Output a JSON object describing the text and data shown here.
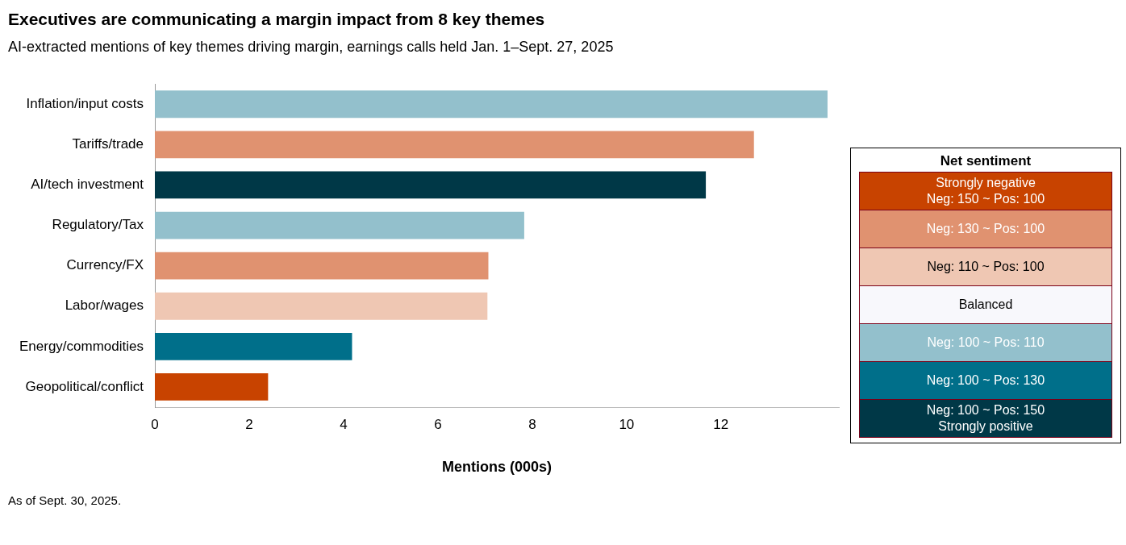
{
  "chart_data": {
    "type": "bar",
    "orientation": "horizontal",
    "title": "Executives are communicating a margin impact from 8 key themes",
    "subtitle": "AI-extracted mentions of key themes driving margin, earnings calls held Jan. 1–Sept. 27, 2025",
    "xlabel": "Mentions (000s)",
    "legend_title": "Net sentiment",
    "legend": "right",
    "categories": [
      "Inflation/input costs",
      "Tariffs/trade",
      "AI/tech investment",
      "Regulatory/Tax",
      "Currency/FX",
      "Labor/wages",
      "Energy/commodities",
      "Geopolitical/conflict"
    ],
    "xlim": [
      0,
      14.5
    ],
    "xticks": [
      0,
      2,
      4,
      6,
      8,
      10,
      12
    ],
    "series": [
      {
        "name": "Strongly negative\nNeg: 150 ~ Pos: 100",
        "color": "#c84300",
        "values": [
          null,
          null,
          null,
          null,
          null,
          null,
          null,
          2.4
        ]
      },
      {
        "name": "Neg: 130 ~ Pos: 100",
        "color": "#e09270",
        "values": [
          null,
          12.7,
          null,
          null,
          7.07,
          null,
          null,
          null
        ]
      },
      {
        "name": "Neg: 110 ~ Pos: 100",
        "color": "#efc7b3",
        "values": [
          null,
          null,
          null,
          null,
          null,
          7.05,
          null,
          null
        ]
      },
      {
        "name": "Balanced",
        "values": [
          null,
          null,
          null,
          null,
          null,
          null,
          null,
          null
        ]
      },
      {
        "name": "Neg: 100 ~ Pos: 110",
        "color": "#93c0cc",
        "values": [
          14.26,
          null,
          null,
          7.83,
          null,
          null,
          null,
          null
        ]
      },
      {
        "name": "Neg: 100 ~ Pos: 130",
        "color": "#006f8a",
        "values": [
          null,
          null,
          null,
          null,
          null,
          null,
          4.18,
          null
        ]
      },
      {
        "name": "Neg: 100 ~ Pos: 150\nStrongly positive",
        "color": "#003847",
        "values": [
          null,
          null,
          11.68,
          null,
          null,
          null,
          null,
          null
        ]
      }
    ],
    "annotations": [
      "As of Sept. 30, 2025."
    ]
  }
}
